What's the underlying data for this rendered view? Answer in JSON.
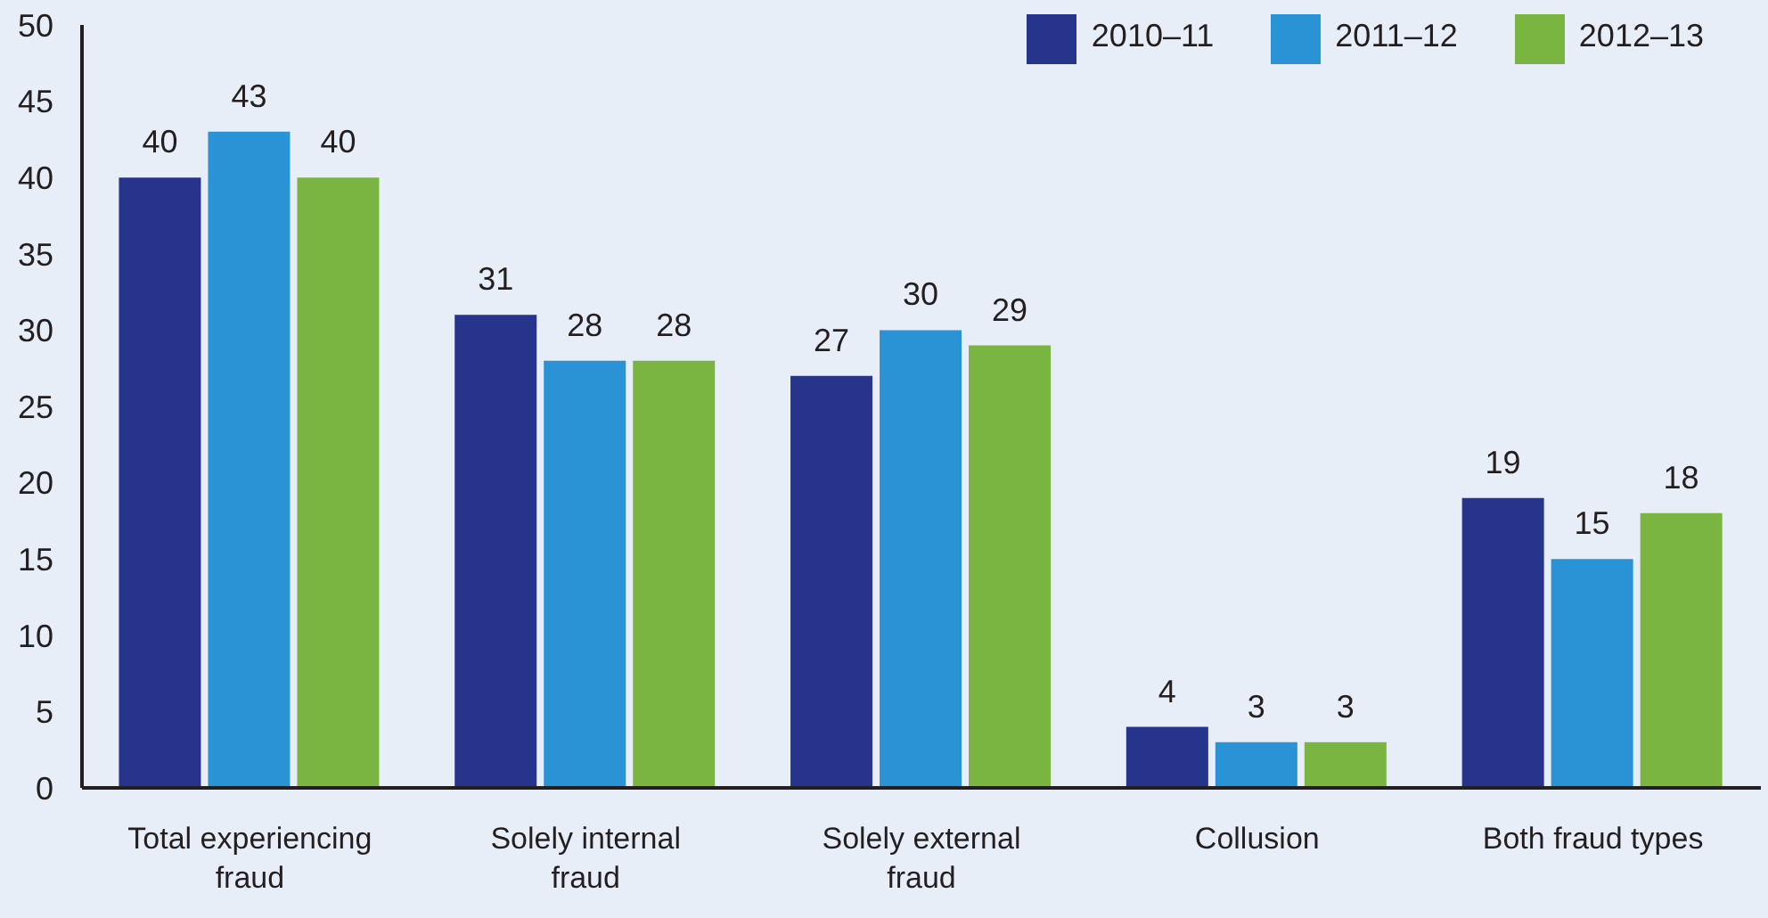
{
  "chart_data": {
    "type": "bar",
    "categories": [
      "Total experiencing fraud",
      "Solely internal fraud",
      "Solely external fraud",
      "Collusion",
      "Both fraud types"
    ],
    "series": [
      {
        "name": "2010–11",
        "color": "#27348b",
        "values": [
          40,
          31,
          27,
          4,
          19
        ]
      },
      {
        "name": "2011–12",
        "color": "#2a93d5",
        "values": [
          43,
          28,
          30,
          3,
          15
        ]
      },
      {
        "name": "2012–13",
        "color": "#7ab541",
        "values": [
          40,
          28,
          29,
          3,
          18
        ]
      }
    ],
    "ylim": [
      0,
      50
    ],
    "yticks": [
      0,
      5,
      10,
      15,
      20,
      25,
      30,
      35,
      40,
      45,
      50
    ],
    "data_labels": true,
    "legend": "top right"
  }
}
